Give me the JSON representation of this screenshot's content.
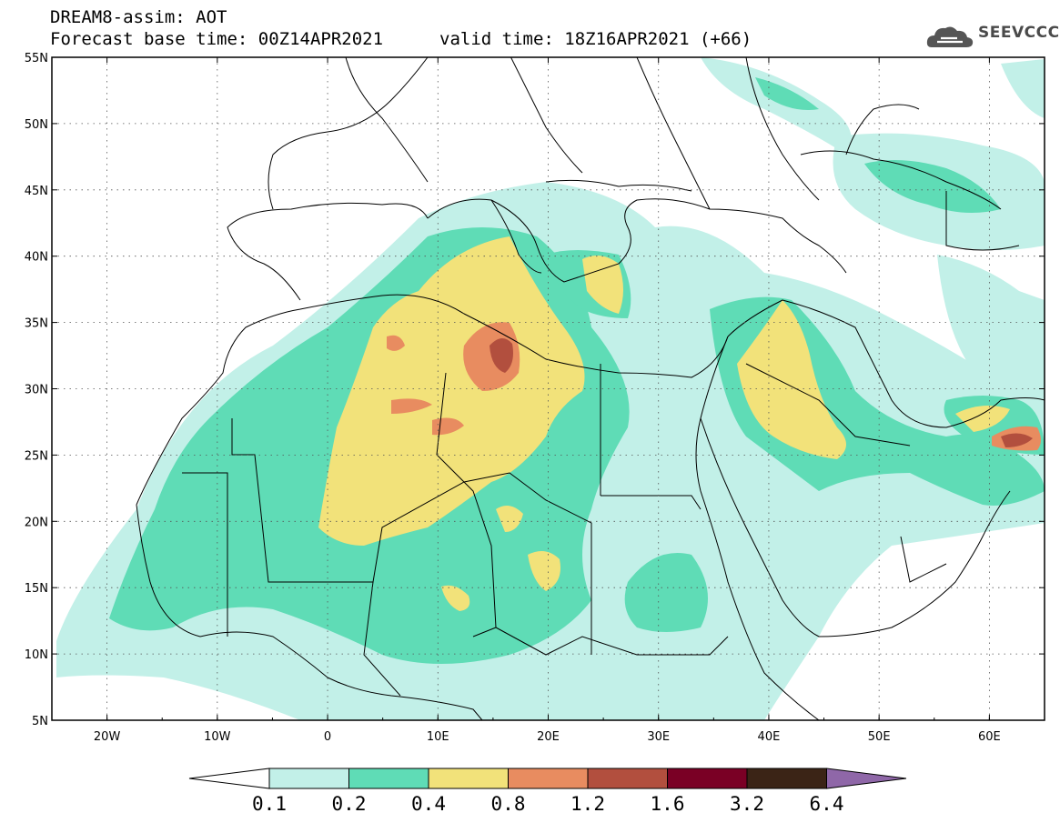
{
  "header": {
    "model_line": "DREAM8-assim: AOT",
    "base_time": "Forecast base time: 00Z14APR2021",
    "valid_time": "valid time: 18Z16APR2021 (+66)"
  },
  "logo": {
    "text": "SEEVCCC",
    "icon": "cloud-icon"
  },
  "map": {
    "lat_labels": [
      "55N",
      "50N",
      "45N",
      "40N",
      "35N",
      "30N",
      "25N",
      "20N",
      "15N",
      "10N",
      "5N"
    ],
    "lon_labels": [
      "20W",
      "10W",
      "0",
      "10E",
      "20E",
      "30E",
      "40E",
      "50E",
      "60E"
    ],
    "lat_range": [
      5,
      55
    ],
    "lon_range": [
      -25,
      65
    ],
    "grid": "dotted",
    "field": "Aerosol Optical Thickness (AOT)"
  },
  "colorbar": {
    "labels": [
      "0.1",
      "0.2",
      "0.4",
      "0.8",
      "1.2",
      "1.6",
      "3.2",
      "6.4"
    ],
    "colors": [
      "#ffffff",
      "#c2f0e8",
      "#5fdcb6",
      "#f2e27a",
      "#e88c60",
      "#b24f3e",
      "#7a0025",
      "#3b2416",
      "#8f67a8"
    ]
  }
}
